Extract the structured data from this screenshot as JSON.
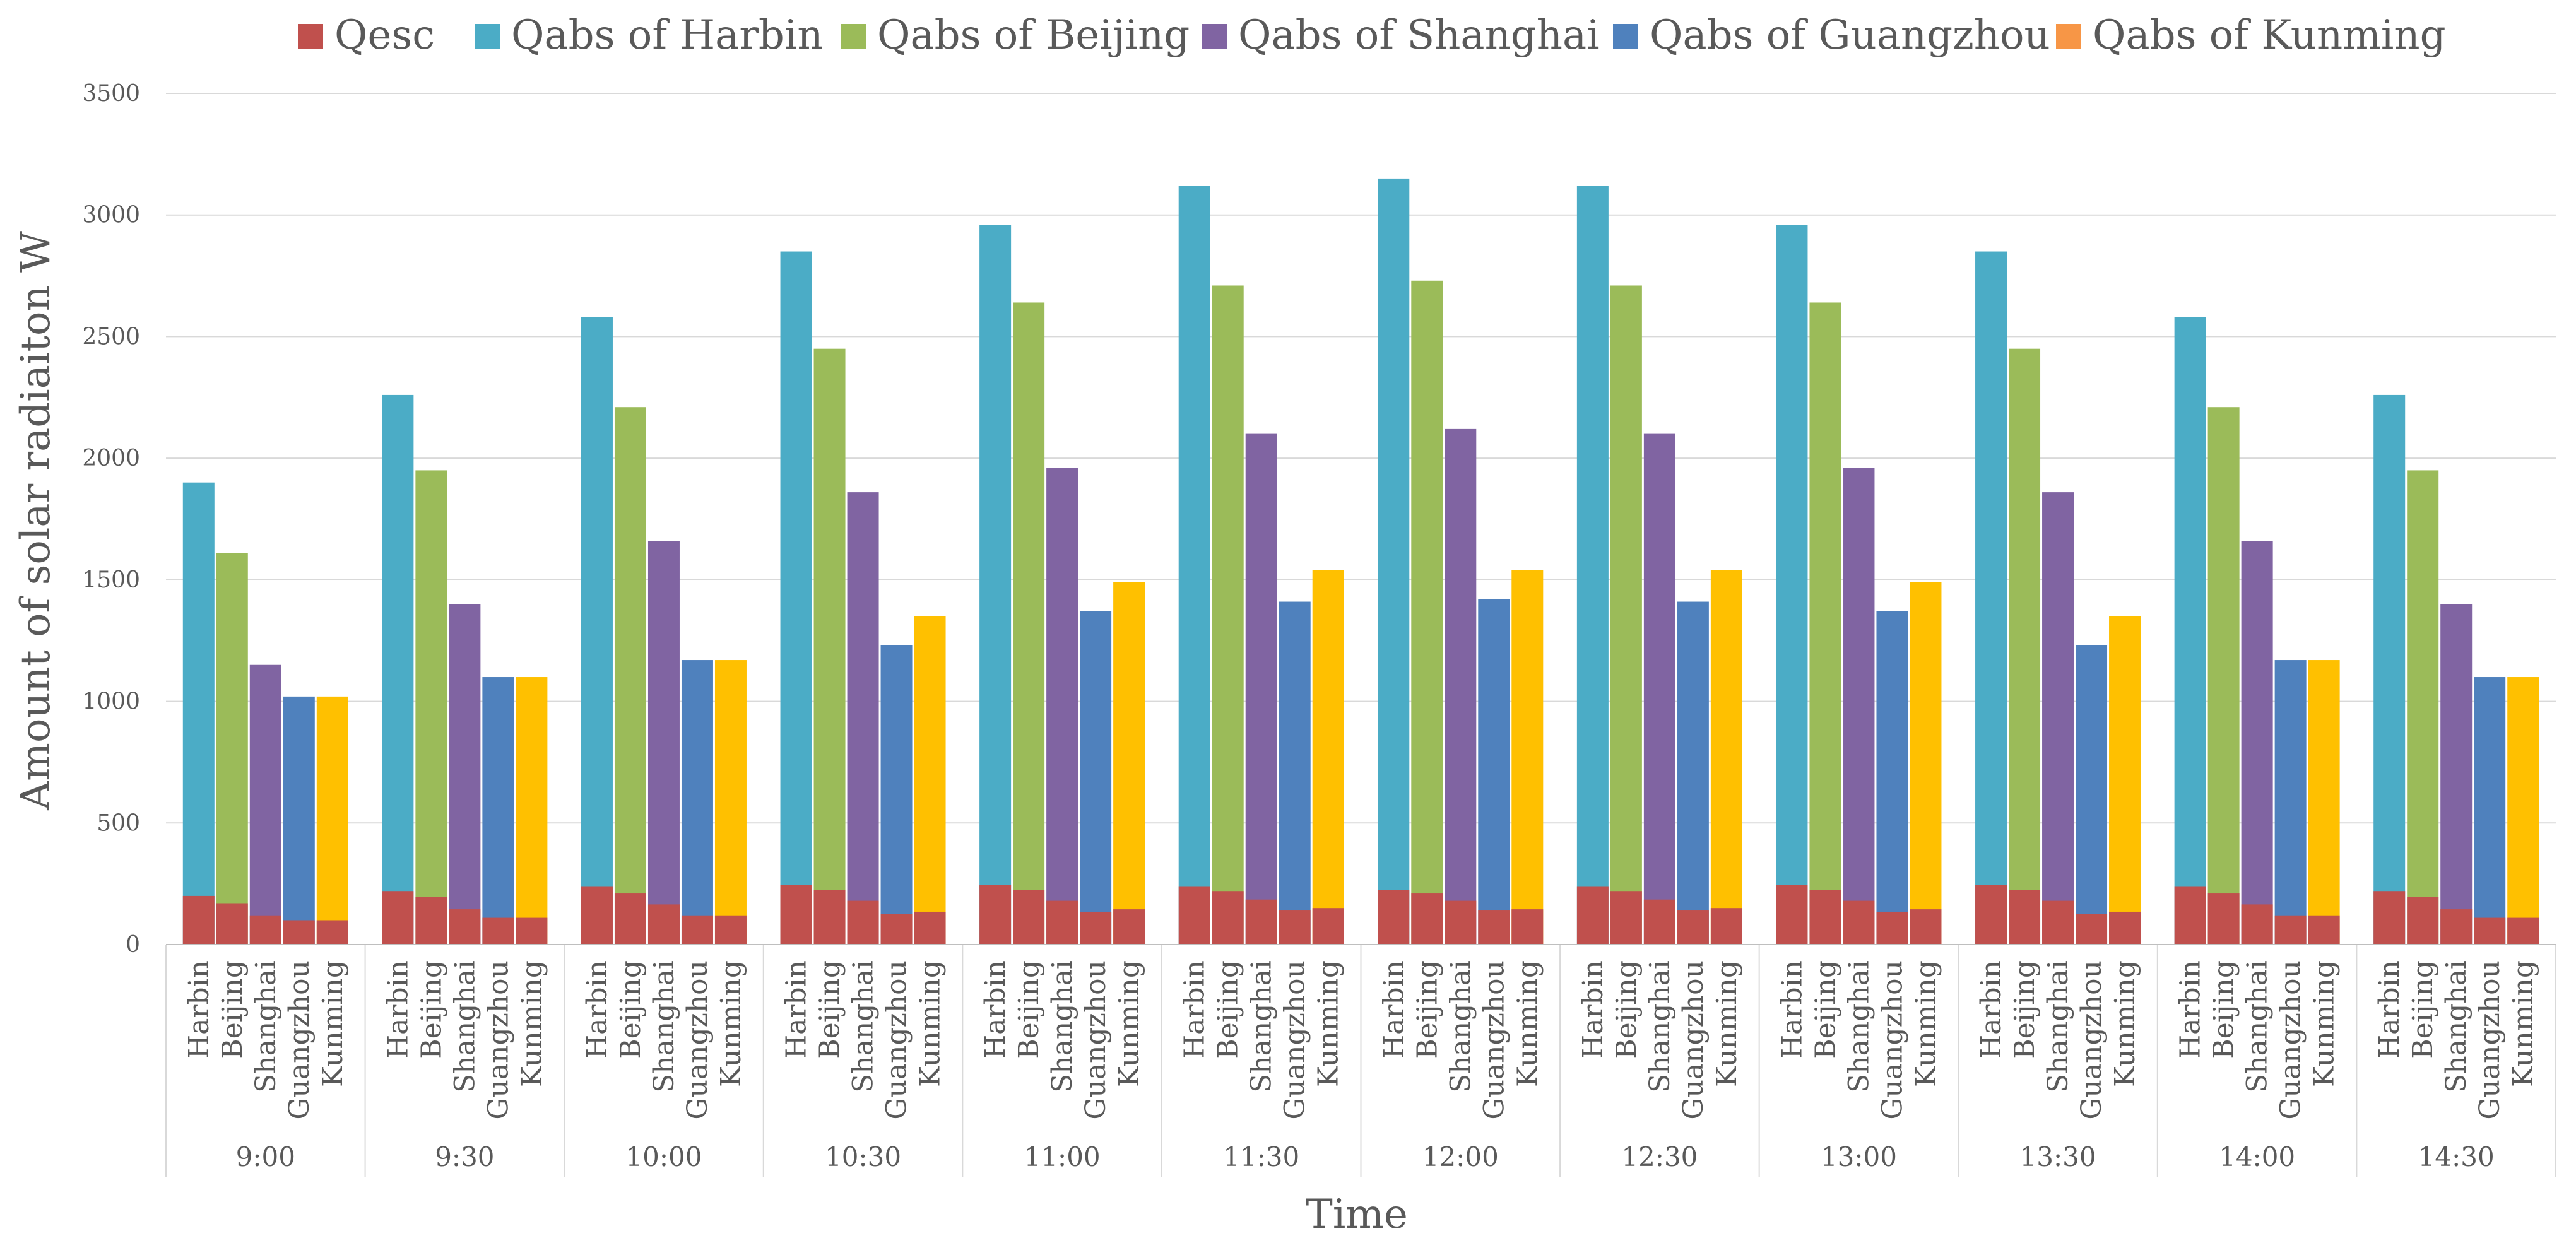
{
  "chart_data": {
    "type": "bar",
    "stacking": "overlapped",
    "title": "",
    "xlabel": "Time",
    "ylabel": "Amount of solar radiaiton  W",
    "ylim": [
      0,
      3500
    ],
    "yticks": [
      0,
      500,
      1000,
      1500,
      2000,
      2500,
      3000,
      3500
    ],
    "grid": true,
    "legend_position": "top",
    "time_labels": [
      "9:00",
      "9:30",
      "10:00",
      "10:30",
      "11:00",
      "11:30",
      "12:00",
      "12:30",
      "13:00",
      "13:30",
      "14:00",
      "14:30"
    ],
    "cities": [
      "Harbin",
      "Beijing",
      "Shanghai",
      "Guangzhou",
      "Kunming"
    ],
    "legend": [
      "Qesc",
      "Qabs of Harbin",
      "Qabs of Beijing",
      "Qabs of Shanghai",
      "Qabs of Guangzhou",
      "Qabs of Kunming"
    ],
    "colors": {
      "Qesc": "#C0504D",
      "Harbin": "#4BACC6",
      "Beijing": "#9BBB59",
      "Shanghai": "#8064A2",
      "Guangzhou": "#4F81BD",
      "Kunming": "#FFC000",
      "legend_kunming": "#F79646",
      "grid": "#D9D9D9",
      "axis": "#BFBFBF"
    },
    "series": [
      {
        "name": "Qabs of Harbin",
        "city": "Harbin",
        "values": [
          1900,
          2260,
          2580,
          2850,
          2960,
          3120,
          3150,
          3120,
          2960,
          2850,
          2580,
          2260
        ]
      },
      {
        "name": "Qabs of Beijing",
        "city": "Beijing",
        "values": [
          1610,
          1950,
          2210,
          2450,
          2640,
          2710,
          2730,
          2710,
          2640,
          2450,
          2210,
          1950
        ]
      },
      {
        "name": "Qabs of Shanghai",
        "city": "Shanghai",
        "values": [
          1150,
          1400,
          1660,
          1860,
          1960,
          2100,
          2120,
          2100,
          1960,
          1860,
          1660,
          1400
        ]
      },
      {
        "name": "Qabs of Guangzhou",
        "city": "Guangzhou",
        "values": [
          1020,
          1100,
          1170,
          1230,
          1370,
          1410,
          1420,
          1410,
          1370,
          1230,
          1170,
          1100
        ]
      },
      {
        "name": "Qabs of Kunming",
        "city": "Kunming",
        "values": [
          1020,
          1100,
          1170,
          1350,
          1490,
          1540,
          1540,
          1540,
          1490,
          1350,
          1170,
          1100
        ]
      },
      {
        "name": "Qesc",
        "city": "all",
        "values": [
          [
            200,
            170,
            120,
            100,
            100
          ],
          [
            220,
            195,
            145,
            110,
            110
          ],
          [
            240,
            210,
            165,
            120,
            120
          ],
          [
            245,
            225,
            180,
            125,
            135
          ],
          [
            245,
            225,
            180,
            135,
            145
          ],
          [
            240,
            220,
            185,
            140,
            150
          ],
          [
            225,
            210,
            180,
            140,
            145
          ],
          [
            240,
            220,
            185,
            140,
            150
          ],
          [
            245,
            225,
            180,
            135,
            145
          ],
          [
            245,
            225,
            180,
            125,
            135
          ],
          [
            240,
            210,
            165,
            120,
            120
          ],
          [
            220,
            195,
            145,
            110,
            110
          ]
        ]
      }
    ]
  }
}
